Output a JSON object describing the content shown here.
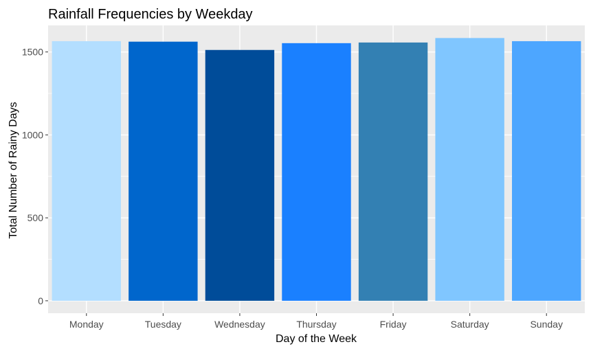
{
  "chart_data": {
    "type": "bar",
    "title": "Rainfall Frequencies by Weekday",
    "xlabel": "Day of the Week",
    "ylabel": "Total Number of Rainy Days",
    "categories": [
      "Monday",
      "Tuesday",
      "Wednesday",
      "Thursday",
      "Friday",
      "Saturday",
      "Sunday"
    ],
    "values": [
      1565,
      1562,
      1512,
      1553,
      1557,
      1584,
      1565
    ],
    "colors": [
      "#B3DEFF",
      "#0066CC",
      "#004C99",
      "#1A80FF",
      "#3380B3",
      "#80C6FF",
      "#4DA6FF"
    ],
    "ylim": [
      -75,
      1660
    ],
    "yticks": [
      0,
      500,
      1000,
      1500
    ],
    "ytick_labels": [
      "0",
      "500",
      "1000",
      "1500"
    ],
    "grid": true,
    "legend": "none",
    "panel_background": "#EBEBEB"
  }
}
